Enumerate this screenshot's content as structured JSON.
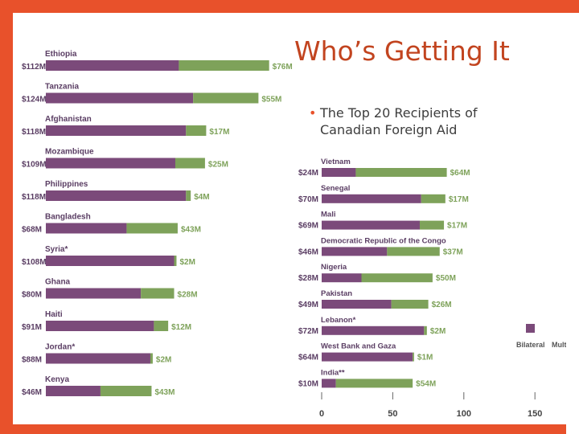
{
  "slide": {
    "title": "Who’s Getting It",
    "bullet": "The Top 20 Recipients of Canadian Foreign Aid"
  },
  "colors": {
    "background": "#e8512b",
    "bilateral": "#7b4a7a",
    "multilateral": "#7ea25a",
    "title": "#c2441f",
    "label": "#5a3d63"
  },
  "chart_data": {
    "type": "bar",
    "stacked": true,
    "orientation": "horizontal",
    "xlim": [
      0,
      150
    ],
    "x_ticks": [
      "0",
      "50",
      "100",
      "150"
    ],
    "legend": {
      "placement": "bottom-right",
      "entries": [
        "Bilateral",
        "Multilateral"
      ]
    },
    "series": [
      {
        "name": "Bilateral"
      },
      {
        "name": "Multilateral"
      }
    ],
    "groups": [
      {
        "rows": [
          {
            "country": "Ethiopia",
            "bilateral": 112,
            "multilateral": 76,
            "bilateral_label": "$112M",
            "multilateral_label": "$76M"
          },
          {
            "country": "Tanzania",
            "bilateral": 124,
            "multilateral": 55,
            "bilateral_label": "$124M",
            "multilateral_label": "$55M"
          },
          {
            "country": "Afghanistan",
            "bilateral": 118,
            "multilateral": 17,
            "bilateral_label": "$118M",
            "multilateral_label": "$17M"
          },
          {
            "country": "Mozambique",
            "bilateral": 109,
            "multilateral": 25,
            "bilateral_label": "$109M",
            "multilateral_label": "$25M"
          },
          {
            "country": "Philippines",
            "bilateral": 118,
            "multilateral": 4,
            "bilateral_label": "$118M",
            "multilateral_label": "$4M"
          },
          {
            "country": "Bangladesh",
            "bilateral": 68,
            "multilateral": 43,
            "bilateral_label": "$68M",
            "multilateral_label": "$43M"
          },
          {
            "country": "Syria*",
            "bilateral": 108,
            "multilateral": 2,
            "bilateral_label": "$108M",
            "multilateral_label": "$2M"
          },
          {
            "country": "Ghana",
            "bilateral": 80,
            "multilateral": 28,
            "bilateral_label": "$80M",
            "multilateral_label": "$28M"
          },
          {
            "country": "Haiti",
            "bilateral": 91,
            "multilateral": 12,
            "bilateral_label": "$91M",
            "multilateral_label": "$12M"
          },
          {
            "country": "Jordan*",
            "bilateral": 88,
            "multilateral": 2,
            "bilateral_label": "$88M",
            "multilateral_label": "$2M"
          },
          {
            "country": "Kenya",
            "bilateral": 46,
            "multilateral": 43,
            "bilateral_label": "$46M",
            "multilateral_label": "$43M"
          }
        ]
      },
      {
        "rows": [
          {
            "country": "Vietnam",
            "bilateral": 24,
            "multilateral": 64,
            "bilateral_label": "$24M",
            "multilateral_label": "$64M"
          },
          {
            "country": "Senegal",
            "bilateral": 70,
            "multilateral": 17,
            "bilateral_label": "$70M",
            "multilateral_label": "$17M"
          },
          {
            "country": "Mali",
            "bilateral": 69,
            "multilateral": 17,
            "bilateral_label": "$69M",
            "multilateral_label": "$17M"
          },
          {
            "country": "Democratic Republic of the Congo",
            "bilateral": 46,
            "multilateral": 37,
            "bilateral_label": "$46M",
            "multilateral_label": "$37M"
          },
          {
            "country": "Nigeria",
            "bilateral": 28,
            "multilateral": 50,
            "bilateral_label": "$28M",
            "multilateral_label": "$50M"
          },
          {
            "country": "Pakistan",
            "bilateral": 49,
            "multilateral": 26,
            "bilateral_label": "$49M",
            "multilateral_label": "$26M"
          },
          {
            "country": "Lebanon*",
            "bilateral": 72,
            "multilateral": 2,
            "bilateral_label": "$72M",
            "multilateral_label": "$2M"
          },
          {
            "country": "West Bank and Gaza",
            "bilateral": 64,
            "multilateral": 1,
            "bilateral_label": "$64M",
            "multilateral_label": "$1M"
          },
          {
            "country": "India**",
            "bilateral": 10,
            "multilateral": 54,
            "bilateral_label": "$10M",
            "multilateral_label": "$54M"
          }
        ]
      }
    ]
  }
}
